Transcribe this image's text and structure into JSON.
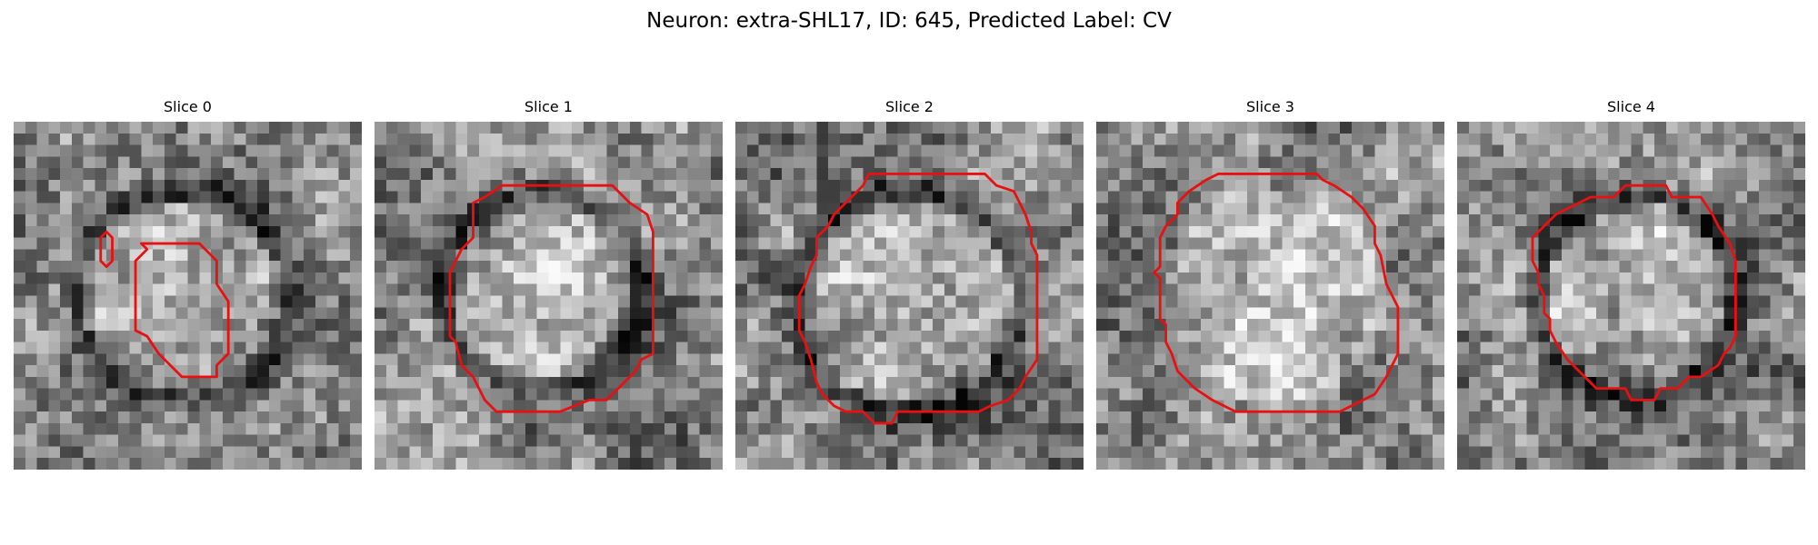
{
  "figure": {
    "title": "Neuron: extra-SHL17, ID: 645, Predicted Label: CV"
  },
  "colors": {
    "contour": "#e81010",
    "background": "#ffffff"
  },
  "image": {
    "grid_size": 30,
    "colormap": "gray"
  },
  "slices": [
    {
      "title": "Slice 0",
      "seed": 17,
      "soma": {
        "cx": 14.5,
        "cy": 15.0,
        "r": 8.5,
        "dark_ring": true
      },
      "contours": [
        [
          [
            11,
            10.5
          ],
          [
            16,
            10.5
          ],
          [
            17,
            11.5
          ],
          [
            17.5,
            12
          ],
          [
            17.5,
            14
          ],
          [
            18.5,
            15.5
          ],
          [
            18.5,
            20
          ],
          [
            17.5,
            21
          ],
          [
            17.5,
            22
          ],
          [
            16.5,
            22
          ],
          [
            14.5,
            22
          ],
          [
            13.5,
            21
          ],
          [
            12.5,
            20
          ],
          [
            11.5,
            18.5
          ],
          [
            10.5,
            18
          ],
          [
            10.5,
            16.5
          ],
          [
            10.5,
            12
          ],
          [
            11.5,
            11
          ]
        ],
        [
          [
            8,
            9.5
          ],
          [
            8.5,
            10
          ],
          [
            8.5,
            12
          ],
          [
            8,
            12.5
          ],
          [
            7.5,
            12
          ],
          [
            7.5,
            10
          ]
        ]
      ]
    },
    {
      "title": "Slice 1",
      "seed": 29,
      "soma": {
        "cx": 14.5,
        "cy": 14.5,
        "r": 8.0,
        "dark_ring": true
      },
      "contours": [
        [
          [
            11,
            5.5
          ],
          [
            20.5,
            5.5
          ],
          [
            22,
            7
          ],
          [
            23.5,
            8
          ],
          [
            24,
            9.5
          ],
          [
            24,
            20
          ],
          [
            23,
            20.5
          ],
          [
            22.5,
            21.5
          ],
          [
            21.5,
            22.5
          ],
          [
            20,
            24
          ],
          [
            18.5,
            24
          ],
          [
            16,
            25
          ],
          [
            10.5,
            25
          ],
          [
            9.5,
            24
          ],
          [
            8.5,
            22
          ],
          [
            7.5,
            21
          ],
          [
            7,
            19
          ],
          [
            6.5,
            18.5
          ],
          [
            6.5,
            13
          ],
          [
            7,
            12
          ],
          [
            7.5,
            11
          ],
          [
            8.5,
            10
          ],
          [
            8.5,
            7
          ],
          [
            9.5,
            6.5
          ]
        ]
      ]
    },
    {
      "title": "Slice 2",
      "seed": 43,
      "soma": {
        "cx": 15.0,
        "cy": 15.5,
        "r": 9.0,
        "dark_ring": true
      },
      "contours": [
        [
          [
            11.5,
            4.5
          ],
          [
            21.5,
            4.5
          ],
          [
            22.5,
            5.5
          ],
          [
            24,
            6
          ],
          [
            24.5,
            7
          ],
          [
            25,
            8
          ],
          [
            25.5,
            9.5
          ],
          [
            25.5,
            10.5
          ],
          [
            26,
            11.5
          ],
          [
            26,
            20.5
          ],
          [
            25,
            22
          ],
          [
            24.5,
            23
          ],
          [
            23.5,
            24
          ],
          [
            22,
            24.5
          ],
          [
            21,
            25
          ],
          [
            14,
            25
          ],
          [
            13.5,
            26
          ],
          [
            12,
            26
          ],
          [
            11,
            25
          ],
          [
            9.5,
            25
          ],
          [
            8.5,
            24.5
          ],
          [
            7.5,
            23.5
          ],
          [
            7,
            22.5
          ],
          [
            6.5,
            20.5
          ],
          [
            6,
            19
          ],
          [
            5.5,
            18
          ],
          [
            5.5,
            15
          ],
          [
            6,
            14
          ],
          [
            6.5,
            12.5
          ],
          [
            7,
            11.5
          ],
          [
            7,
            10
          ],
          [
            8,
            9
          ],
          [
            8.5,
            8
          ],
          [
            9.5,
            7
          ],
          [
            10,
            6.5
          ],
          [
            11,
            5.5
          ]
        ]
      ]
    },
    {
      "title": "Slice 3",
      "seed": 61,
      "soma": {
        "cx": 15.5,
        "cy": 15.0,
        "r": 9.5,
        "dark_ring": false
      },
      "contours": [
        [
          [
            10.5,
            4.5
          ],
          [
            19,
            4.5
          ],
          [
            19.5,
            5
          ],
          [
            20.5,
            5.5
          ],
          [
            22,
            6.5
          ],
          [
            23,
            7.5
          ],
          [
            24,
            9
          ],
          [
            24,
            10.5
          ],
          [
            24.5,
            11.5
          ],
          [
            25,
            14
          ],
          [
            26,
            16
          ],
          [
            26,
            20
          ],
          [
            25.5,
            21
          ],
          [
            25,
            22
          ],
          [
            24,
            23.5
          ],
          [
            22,
            24.5
          ],
          [
            21,
            25
          ],
          [
            12,
            25
          ],
          [
            10,
            24
          ],
          [
            8.5,
            23
          ],
          [
            7,
            21.5
          ],
          [
            6.5,
            20
          ],
          [
            6,
            19
          ],
          [
            6,
            17.5
          ],
          [
            5.5,
            17
          ],
          [
            5.5,
            13.5
          ],
          [
            5,
            13
          ],
          [
            5.5,
            12.5
          ],
          [
            5.5,
            10
          ],
          [
            6,
            9
          ],
          [
            7,
            8
          ],
          [
            7,
            7
          ],
          [
            8,
            6
          ],
          [
            9.5,
            5
          ]
        ]
      ]
    },
    {
      "title": "Slice 4",
      "seed": 83,
      "soma": {
        "cx": 15.5,
        "cy": 15.0,
        "r": 8.0,
        "dark_ring": true
      },
      "contours": [
        [
          [
            14.5,
            5.5
          ],
          [
            18,
            5.5
          ],
          [
            18.5,
            6.5
          ],
          [
            21,
            6.5
          ],
          [
            22,
            8
          ],
          [
            22.5,
            9
          ],
          [
            23.5,
            10.5
          ],
          [
            24,
            12
          ],
          [
            24,
            18.5
          ],
          [
            23.5,
            19.5
          ],
          [
            23,
            20
          ],
          [
            22.5,
            21
          ],
          [
            21,
            22
          ],
          [
            20,
            22
          ],
          [
            19,
            23
          ],
          [
            17.5,
            23
          ],
          [
            17,
            24
          ],
          [
            15,
            24
          ],
          [
            14.5,
            23
          ],
          [
            12,
            23
          ],
          [
            11,
            22
          ],
          [
            10,
            21
          ],
          [
            9.5,
            20.5
          ],
          [
            8.5,
            19
          ],
          [
            8,
            18
          ],
          [
            8,
            17
          ],
          [
            7.5,
            16.5
          ],
          [
            7.5,
            15
          ],
          [
            7,
            14
          ],
          [
            7,
            13
          ],
          [
            6.5,
            12
          ],
          [
            6.5,
            10
          ],
          [
            7.5,
            9
          ],
          [
            8.5,
            8
          ],
          [
            9.5,
            7.5
          ],
          [
            10.5,
            7
          ],
          [
            11.5,
            6.5
          ],
          [
            13.5,
            6.5
          ]
        ]
      ]
    }
  ]
}
